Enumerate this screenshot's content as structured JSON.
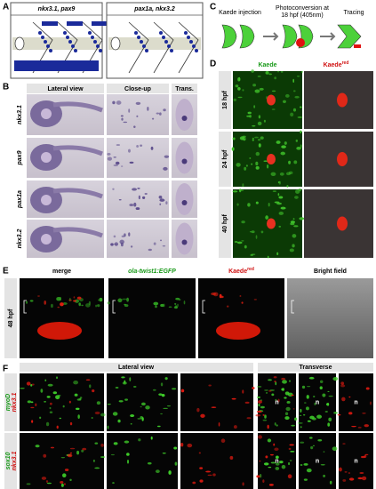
{
  "panel_a": {
    "label": "A",
    "boxes": [
      "nkx3.1, pax9",
      "pax1a, nkx3.2"
    ]
  },
  "panel_b": {
    "label": "B",
    "headers": [
      "Lateral view",
      "Close-up",
      "Trans."
    ],
    "rows": [
      "nkx3.1",
      "pax9",
      "pax1a",
      "nkx3.2"
    ]
  },
  "panel_c": {
    "label": "C",
    "steps": [
      {
        "lines": [
          "Kaede injection"
        ]
      },
      {
        "lines": [
          "Photoconversion at",
          "18 hpf (405nm)"
        ]
      },
      {
        "lines": [
          "Tracing"
        ]
      }
    ]
  },
  "panel_d": {
    "label": "D",
    "headers": [
      {
        "text": "Kaede"
      },
      {
        "text": "Kaede",
        "superscript": "red"
      }
    ],
    "rows": [
      "18 hpf",
      "24 hpf",
      "40 hpf"
    ]
  },
  "panel_e": {
    "label": "E",
    "headers": [
      {
        "text": "merge"
      },
      {
        "text": "ola-twist1:EGFP"
      },
      {
        "text": "Kaede",
        "superscript": "red"
      },
      {
        "text": "Bright field"
      }
    ],
    "rows": [
      "48 hpf"
    ]
  },
  "panel_f": {
    "label": "F",
    "groups": [
      "Lateral view",
      "Transverse"
    ],
    "rows": [
      [
        "myoD",
        "nkx3.1"
      ],
      [
        "sox10",
        "nkx3.1"
      ]
    ],
    "marker": "n"
  }
}
